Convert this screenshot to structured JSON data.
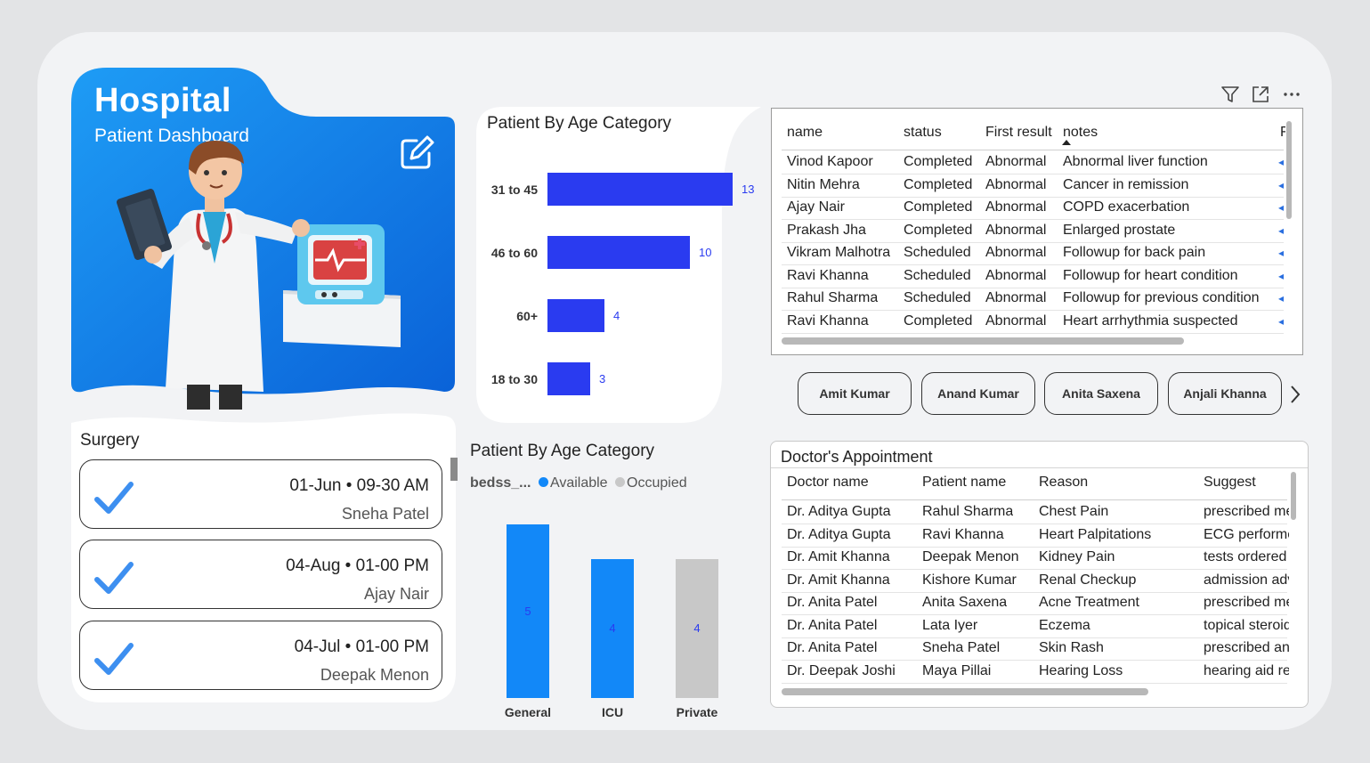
{
  "header": {
    "title": "Hospital",
    "subtitle": "Patient Dashboard",
    "edit_icon": "edit-icon"
  },
  "surgery": {
    "title": "Surgery",
    "items": [
      {
        "datetime": "01-Jun • 09-30 AM",
        "patient": "Sneha Patel"
      },
      {
        "datetime": "04-Aug • 01-00 PM",
        "patient": "Ajay Nair"
      },
      {
        "datetime": "04-Jul • 01-00 PM",
        "patient": "Deepak Menon"
      }
    ]
  },
  "chart_data": [
    {
      "type": "bar",
      "orientation": "horizontal",
      "title": "Patient By Age Category",
      "categories": [
        "31 to 45",
        "46 to 60",
        "60+",
        "18 to 30"
      ],
      "values": [
        13,
        10,
        4,
        3
      ],
      "color": "#2a3bf0"
    },
    {
      "type": "bar",
      "title": "Patient By Age Category",
      "legend_title": "bedss_...",
      "legend": [
        "Available",
        "Occupied"
      ],
      "categories": [
        "General",
        "ICU",
        "Private"
      ],
      "series": [
        {
          "name": "Available",
          "values": [
            5,
            4,
            null
          ],
          "color": "#1288f8"
        },
        {
          "name": "Occupied",
          "values": [
            null,
            null,
            4
          ],
          "color": "#c8c8c8"
        }
      ],
      "ylim": [
        0,
        5.5
      ]
    }
  ],
  "patients_table": {
    "columns": [
      "name",
      "status",
      "First result",
      "notes",
      "F"
    ],
    "sorted_column": "notes",
    "rows": [
      [
        "Vinod Kapoor",
        "Completed",
        "Abnormal",
        "Abnormal liver function"
      ],
      [
        "Nitin Mehra",
        "Completed",
        "Abnormal",
        "Cancer in remission"
      ],
      [
        "Ajay Nair",
        "Completed",
        "Abnormal",
        "COPD exacerbation"
      ],
      [
        "Prakash Jha",
        "Completed",
        "Abnormal",
        "Enlarged prostate"
      ],
      [
        "Vikram Malhotra",
        "Scheduled",
        "Abnormal",
        "Followup for back pain"
      ],
      [
        "Ravi Khanna",
        "Scheduled",
        "Abnormal",
        "Followup for heart condition"
      ],
      [
        "Rahul Sharma",
        "Scheduled",
        "Abnormal",
        "Followup for previous condition"
      ],
      [
        "Ravi Khanna",
        "Completed",
        "Abnormal",
        "Heart arrhythmia suspected"
      ]
    ],
    "toolbar": [
      "filter-icon",
      "focus-mode-icon",
      "more-options-icon"
    ]
  },
  "doctor_slicer": {
    "items": [
      "Amit Kumar",
      "Anand Kumar",
      "Anita Saxena",
      "Anjali Khanna"
    ]
  },
  "appointments": {
    "title": "Doctor's Appointment",
    "columns": [
      "Doctor name",
      "Patient name",
      "Reason",
      "Suggest"
    ],
    "rows": [
      [
        "Dr. Aditya Gupta",
        "Rahul Sharma",
        "Chest Pain",
        "prescribed me"
      ],
      [
        "Dr. Aditya Gupta",
        "Ravi Khanna",
        "Heart Palpitations",
        "ECG performe"
      ],
      [
        "Dr. Amit Khanna",
        "Deepak Menon",
        "Kidney Pain",
        "tests ordered"
      ],
      [
        "Dr. Amit Khanna",
        "Kishore Kumar",
        "Renal Checkup",
        "admission adv"
      ],
      [
        "Dr. Anita Patel",
        "Anita Saxena",
        "Acne Treatment",
        "prescribed me"
      ],
      [
        "Dr. Anita Patel",
        "Lata Iyer",
        "Eczema",
        "topical steroid"
      ],
      [
        "Dr. Anita Patel",
        "Sneha Patel",
        "Skin Rash",
        "prescribed an"
      ],
      [
        "Dr. Deepak Joshi",
        "Maya Pillai",
        "Hearing Loss",
        "hearing aid re"
      ]
    ]
  }
}
